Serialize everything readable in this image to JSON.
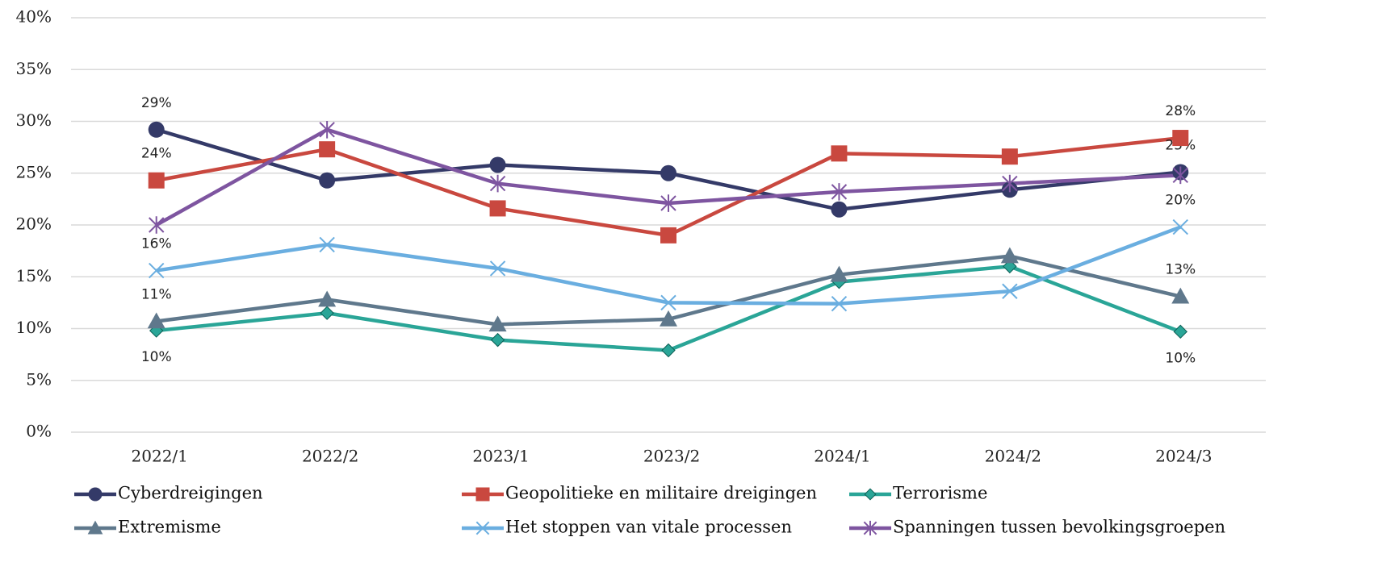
{
  "chart_data": {
    "type": "line",
    "categories": [
      "2022/1",
      "2022/2",
      "2023/1",
      "2023/2",
      "2024/1",
      "2024/2",
      "2024/3"
    ],
    "series": [
      {
        "name": "Cyberdreigingen",
        "color": "#343a68",
        "marker": "circle",
        "values": [
          29.2,
          24.3,
          25.8,
          25.0,
          21.5,
          23.4,
          25.1
        ],
        "value_labels": [
          "29%",
          null,
          null,
          null,
          null,
          null,
          "25%"
        ]
      },
      {
        "name": "Geopolitieke en militaire dreigingen",
        "color": "#c9483f",
        "marker": "square",
        "values": [
          24.3,
          27.3,
          21.6,
          19.0,
          26.9,
          26.6,
          28.4
        ],
        "value_labels": [
          "24%",
          null,
          null,
          null,
          null,
          null,
          "28%"
        ]
      },
      {
        "name": "Terrorisme",
        "color": "#2aa597",
        "marker": "diamond",
        "label_position": "below",
        "values": [
          9.8,
          11.5,
          8.9,
          7.9,
          14.5,
          16.0,
          9.7
        ],
        "value_labels": [
          "10%",
          null,
          null,
          null,
          null,
          null,
          "10%"
        ]
      },
      {
        "name": "Extremisme",
        "color": "#5f788c",
        "marker": "triangle",
        "values": [
          10.7,
          12.8,
          10.4,
          10.9,
          15.2,
          17.0,
          13.1
        ],
        "value_labels": [
          "11%",
          null,
          null,
          null,
          null,
          null,
          "13%"
        ]
      },
      {
        "name": "Het stoppen van vitale processen",
        "color": "#6aaee0",
        "marker": "x",
        "values": [
          15.6,
          18.1,
          15.8,
          12.5,
          12.4,
          13.6,
          19.8
        ],
        "value_labels": [
          "16%",
          null,
          null,
          null,
          null,
          null,
          "20%"
        ]
      },
      {
        "name": "Spanningen tussen bevolkingsgroepen",
        "color": "#7e55a0",
        "marker": "star",
        "values": [
          20.0,
          29.2,
          24.0,
          22.1,
          23.2,
          24.0,
          24.8
        ]
      }
    ],
    "ylim": [
      0,
      40
    ],
    "yticks": [
      {
        "value": 0,
        "label": "0%"
      },
      {
        "value": 5,
        "label": "5%"
      },
      {
        "value": 10,
        "label": "10%"
      },
      {
        "value": 15,
        "label": "15%"
      },
      {
        "value": 20,
        "label": "20%"
      },
      {
        "value": 25,
        "label": "25%"
      },
      {
        "value": 30,
        "label": "30%"
      },
      {
        "value": 35,
        "label": "35%"
      },
      {
        "value": 40,
        "label": "40%"
      }
    ],
    "grid": true,
    "legend": "bottom"
  }
}
